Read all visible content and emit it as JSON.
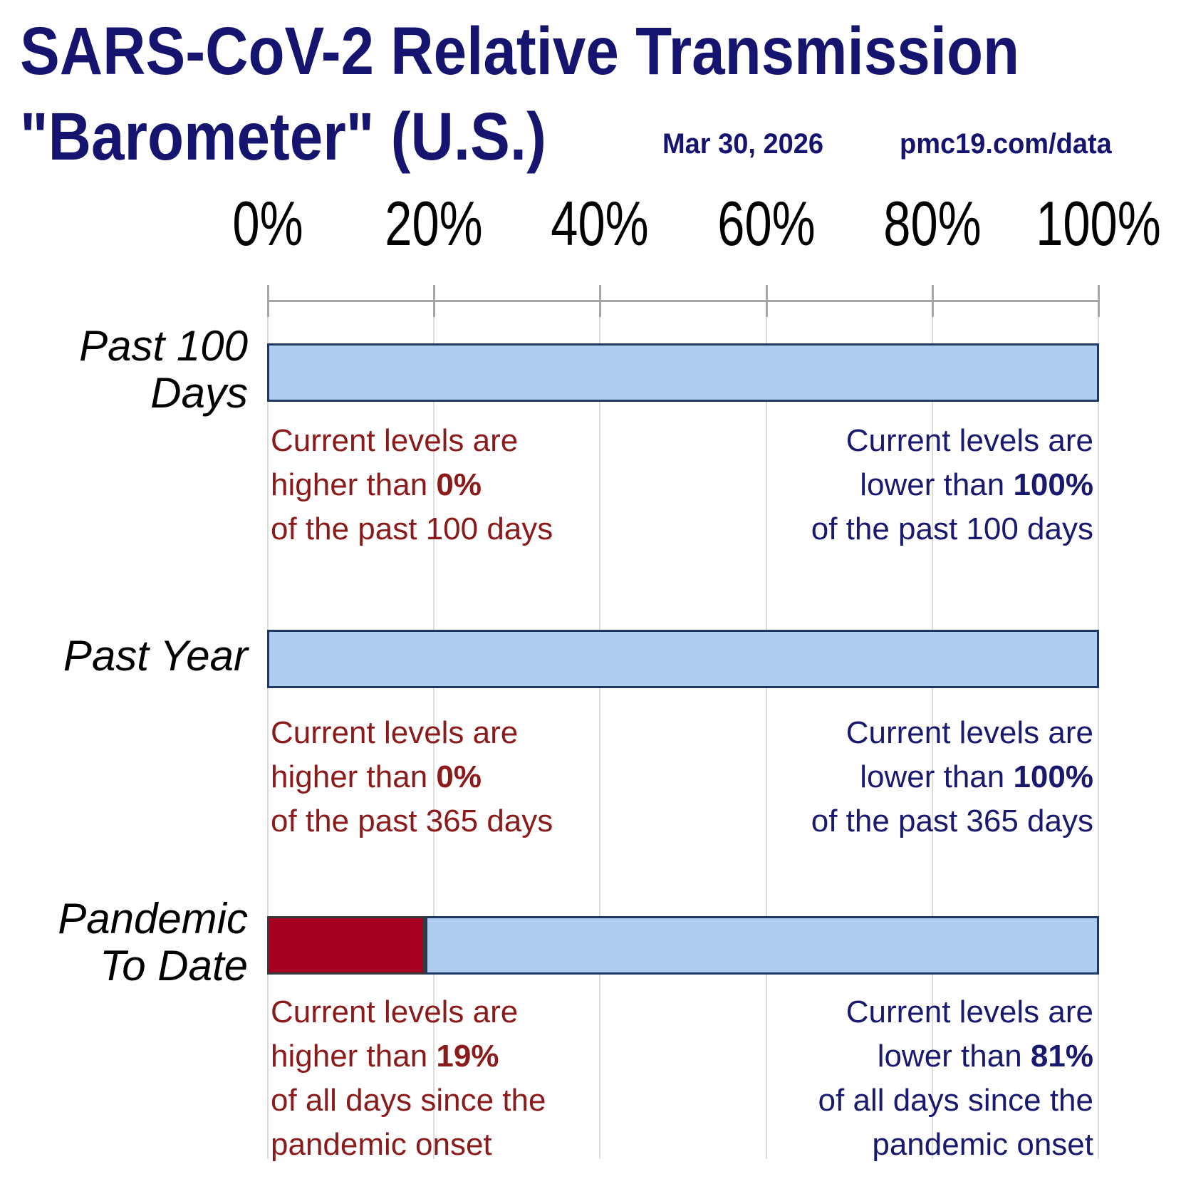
{
  "header": {
    "title_line1": "SARS-CoV-2 Relative Transmission",
    "title_line2": "\"Barometer\" (U.S.)",
    "date": "Mar 30, 2026",
    "source": "pmc19.com/data"
  },
  "axis": {
    "tick_labels": [
      "0%",
      "20%",
      "40%",
      "60%",
      "80%",
      "100%"
    ]
  },
  "rows": [
    {
      "label_lines": [
        "Past 100",
        "Days"
      ],
      "higher_pct": 0,
      "lower_pct": 100,
      "red_annotation": [
        [
          {
            "t": "Current levels are"
          }
        ],
        [
          {
            "t": "higher than  "
          },
          {
            "t": "0%",
            "bold": true
          }
        ],
        [
          {
            "t": "of the past 100 days"
          }
        ]
      ],
      "navy_annotation": [
        [
          {
            "t": "Current levels are"
          }
        ],
        [
          {
            "t": "lower than  "
          },
          {
            "t": "100%",
            "bold": true
          }
        ],
        [
          {
            "t": "of the past 100 days"
          }
        ]
      ]
    },
    {
      "label_lines": [
        "Past Year"
      ],
      "higher_pct": 0,
      "lower_pct": 100,
      "red_annotation": [
        [
          {
            "t": "Current levels are"
          }
        ],
        [
          {
            "t": "higher than  "
          },
          {
            "t": "0%",
            "bold": true
          }
        ],
        [
          {
            "t": "of the past 365 days"
          }
        ]
      ],
      "navy_annotation": [
        [
          {
            "t": "Current levels are"
          }
        ],
        [
          {
            "t": "lower than  "
          },
          {
            "t": "100%",
            "bold": true
          }
        ],
        [
          {
            "t": "of the past 365 days"
          }
        ]
      ]
    },
    {
      "label_lines": [
        "Pandemic",
        "To Date"
      ],
      "higher_pct": 19,
      "lower_pct": 81,
      "red_annotation": [
        [
          {
            "t": "Current levels are"
          }
        ],
        [
          {
            "t": "higher than  "
          },
          {
            "t": "19%",
            "bold": true
          }
        ],
        [
          {
            "t": "of all days since the"
          }
        ],
        [
          {
            "t": "pandemic onset"
          }
        ]
      ],
      "navy_annotation": [
        [
          {
            "t": "Current levels are"
          }
        ],
        [
          {
            "t": "lower than  "
          },
          {
            "t": "81%",
            "bold": true
          }
        ],
        [
          {
            "t": "of all days since the"
          }
        ],
        [
          {
            "t": "pandemic onset"
          }
        ]
      ]
    }
  ],
  "chart_data": {
    "type": "bar",
    "orientation": "horizontal",
    "stacked": true,
    "title": "SARS-CoV-2 Relative Transmission \"Barometer\" (U.S.)",
    "date": "Mar 30, 2026",
    "source": "pmc19.com/data",
    "categories": [
      "Past 100 Days",
      "Past Year",
      "Pandemic To Date"
    ],
    "series": [
      {
        "name": "Current levels higher than (%)",
        "values": [
          0,
          0,
          19
        ],
        "color": "#A50021"
      },
      {
        "name": "Current levels lower than (%)",
        "values": [
          100,
          100,
          81
        ],
        "color": "#AECDEF"
      }
    ],
    "xlabel": "",
    "ylabel": "",
    "xlim": [
      0,
      100
    ],
    "x_tick_labels": [
      "0%",
      "20%",
      "40%",
      "60%",
      "80%",
      "100%"
    ],
    "grid": true,
    "legend_position": "none"
  },
  "colors": {
    "navy": "#191970",
    "title_navy": "#151570",
    "red_text": "#8B1A1A",
    "bar_blue_fill": "#AECDEF",
    "bar_red_fill": "#A50021",
    "bar_blue_border": "#1F3864",
    "bar_red_border": "#3a3a3a",
    "gridline": "#dcdcdc",
    "axis_line": "#a6a6a6",
    "axis_text": "#000000"
  }
}
